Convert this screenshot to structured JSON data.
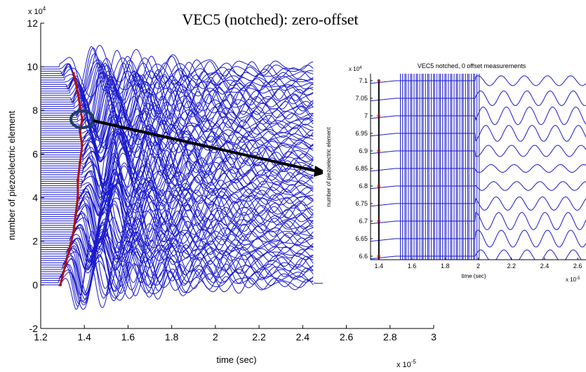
{
  "colors": {
    "trace": "#1a1acc",
    "arrival": "#b01010",
    "circle": "#1f3d66",
    "axis": "#000000"
  },
  "chart_data": [
    {
      "type": "line",
      "title": "VEC5 (notched): zero-offset",
      "xlabel": "time (sec)",
      "ylabel": "number of piezoelectric element",
      "x_exponent": "x 10",
      "x_exponent_power": "-5",
      "y_exponent": "x 10",
      "y_exponent_power": "4",
      "xlim": [
        1.2,
        3.0
      ],
      "ylim": [
        -2,
        12
      ],
      "xticks": [
        "1.2",
        "1.4",
        "1.6",
        "1.8",
        "2",
        "2.2",
        "2.4",
        "2.6",
        "2.8",
        "3"
      ],
      "yticks": [
        "-2",
        "0",
        "2",
        "4",
        "6",
        "8",
        "10",
        "12"
      ],
      "series": [
        {
          "trace_count": 100,
          "trace_offset_start": 0,
          "trace_offset_end": 10,
          "time_end": 2.45,
          "first_arrival_time": [
            1.28,
            1.42
          ],
          "dominant_period": 0.14
        }
      ],
      "arrival_pick": {
        "x": [
          1.29,
          1.31,
          1.33,
          1.35,
          1.36,
          1.37,
          1.37,
          1.38,
          1.39,
          1.38,
          1.39,
          1.38,
          1.37,
          1.36,
          1.35
        ],
        "y": [
          0.0,
          0.8,
          1.6,
          2.4,
          3.2,
          4.0,
          4.8,
          5.6,
          6.4,
          7.0,
          7.6,
          8.2,
          8.8,
          9.3,
          9.7
        ]
      },
      "highlight_point": {
        "x": 1.385,
        "y": 6.7
      }
    },
    {
      "type": "line",
      "title": "VEC5 notched, 0 offset measurements",
      "xlabel": "time (sec)",
      "ylabel": "number of piezoelectric element",
      "x_exponent": "x 10",
      "x_exponent_power": "-5",
      "y_exponent": "x 10",
      "y_exponent_power": "4",
      "xlim": [
        1.35,
        2.65
      ],
      "ylim": [
        6.59,
        7.12
      ],
      "xticks": [
        "1.4",
        "1.6",
        "1.8",
        "2",
        "2.2",
        "2.4",
        "2.6"
      ],
      "yticks": [
        "6.6",
        "6.65",
        "6.7",
        "6.75",
        "6.8",
        "6.85",
        "6.9",
        "6.95",
        "7",
        "7.05",
        "7.1"
      ],
      "arrival_time": 1.4
    }
  ]
}
